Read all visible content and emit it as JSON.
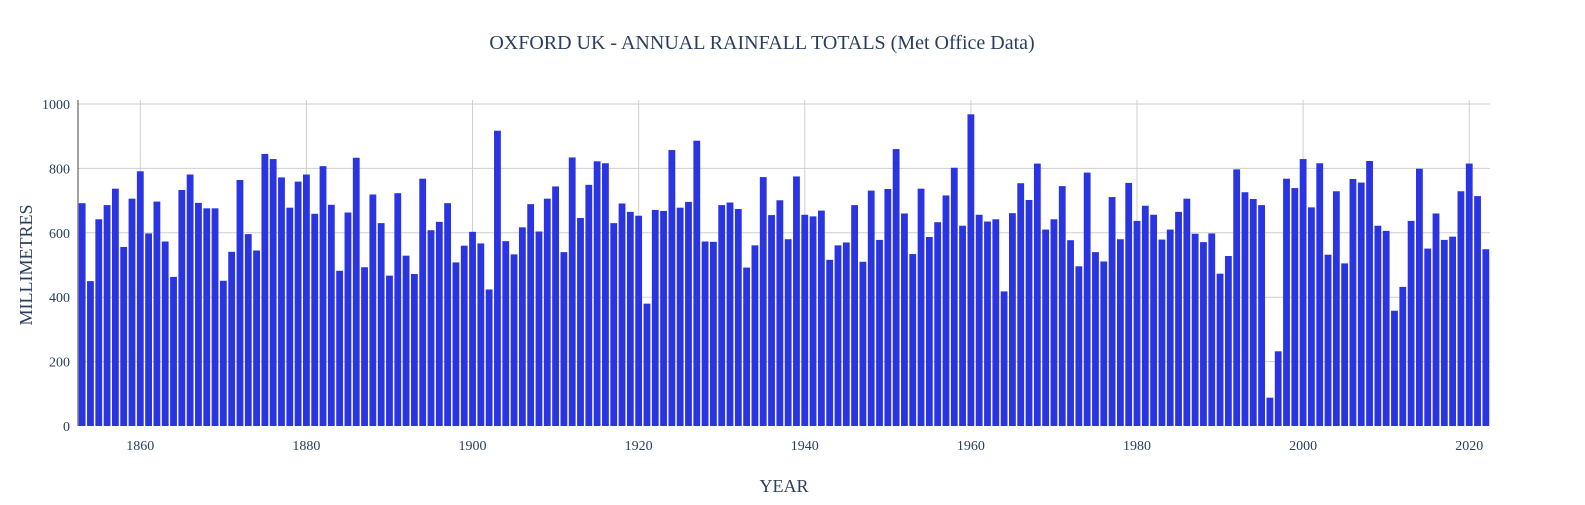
{
  "chart_data": {
    "type": "bar",
    "title": "OXFORD UK - ANNUAL RAINFALL TOTALS (Met Office Data)",
    "xlabel": "YEAR",
    "ylabel": "MILLIMETRES",
    "xlim": [
      1852.5,
      2022.5
    ],
    "ylim": [
      0,
      1000
    ],
    "x_ticks": [
      1860,
      1880,
      1900,
      1920,
      1940,
      1960,
      1980,
      2000,
      2020
    ],
    "y_ticks": [
      0,
      200,
      400,
      600,
      800,
      1000
    ],
    "grid": true,
    "bar_color": "#2a34e0",
    "x": [
      1853,
      1854,
      1855,
      1856,
      1857,
      1858,
      1859,
      1860,
      1861,
      1862,
      1863,
      1864,
      1865,
      1866,
      1867,
      1868,
      1869,
      1870,
      1871,
      1872,
      1873,
      1874,
      1875,
      1876,
      1877,
      1878,
      1879,
      1880,
      1881,
      1882,
      1883,
      1884,
      1885,
      1886,
      1887,
      1888,
      1889,
      1890,
      1891,
      1892,
      1893,
      1894,
      1895,
      1896,
      1897,
      1898,
      1899,
      1900,
      1901,
      1902,
      1903,
      1904,
      1905,
      1906,
      1907,
      1908,
      1909,
      1910,
      1911,
      1912,
      1913,
      1914,
      1915,
      1916,
      1917,
      1918,
      1919,
      1920,
      1921,
      1922,
      1923,
      1924,
      1925,
      1926,
      1927,
      1928,
      1929,
      1930,
      1931,
      1932,
      1933,
      1934,
      1935,
      1936,
      1937,
      1938,
      1939,
      1940,
      1941,
      1942,
      1943,
      1944,
      1945,
      1946,
      1947,
      1948,
      1949,
      1950,
      1951,
      1952,
      1953,
      1954,
      1955,
      1956,
      1957,
      1958,
      1959,
      1960,
      1961,
      1962,
      1963,
      1964,
      1965,
      1966,
      1967,
      1968,
      1969,
      1970,
      1971,
      1972,
      1973,
      1974,
      1975,
      1976,
      1977,
      1978,
      1979,
      1980,
      1981,
      1982,
      1983,
      1984,
      1985,
      1986,
      1987,
      1988,
      1989,
      1990,
      1991,
      1992,
      1993,
      1994,
      1995,
      1996,
      1997,
      1998,
      1999,
      2000,
      2001,
      2002,
      2003,
      2004,
      2005,
      2006,
      2007,
      2008,
      2009,
      2010,
      2011,
      2012,
      2013,
      2014,
      2015,
      2016,
      2017,
      2018,
      2019,
      2020,
      2021,
      2022
    ],
    "values": [
      692,
      450,
      642,
      686,
      737,
      556,
      706,
      791,
      598,
      697,
      573,
      463,
      733,
      781,
      693,
      676,
      676,
      451,
      541,
      764,
      596,
      545,
      845,
      829,
      772,
      678,
      759,
      781,
      659,
      807,
      687,
      482,
      663,
      833,
      493,
      719,
      630,
      467,
      723,
      529,
      472,
      768,
      608,
      634,
      692,
      508,
      560,
      603,
      567,
      424,
      917,
      574,
      533,
      617,
      689,
      604,
      706,
      744,
      540,
      834,
      646,
      749,
      822,
      816,
      630,
      691,
      665,
      653,
      380,
      671,
      668,
      857,
      678,
      696,
      886,
      573,
      572,
      686,
      694,
      674,
      492,
      561,
      773,
      655,
      701,
      580,
      775,
      656,
      651,
      669,
      516,
      561,
      570,
      686,
      510,
      731,
      578,
      736,
      860,
      660,
      534,
      737,
      587,
      633,
      716,
      802,
      622,
      968,
      656,
      635,
      642,
      418,
      661,
      754,
      702,
      815,
      610,
      642,
      745,
      577,
      496,
      787,
      540,
      511,
      711,
      580,
      755,
      637,
      684,
      656,
      579,
      610,
      665,
      706,
      597,
      571,
      598,
      473,
      528,
      797,
      726,
      705,
      686,
      88,
      232,
      768,
      739,
      829,
      679,
      816,
      532,
      729,
      505,
      767,
      756,
      823,
      622,
      606,
      358,
      432,
      637,
      799,
      551,
      660,
      578,
      588,
      729,
      815,
      714,
      549
    ]
  }
}
